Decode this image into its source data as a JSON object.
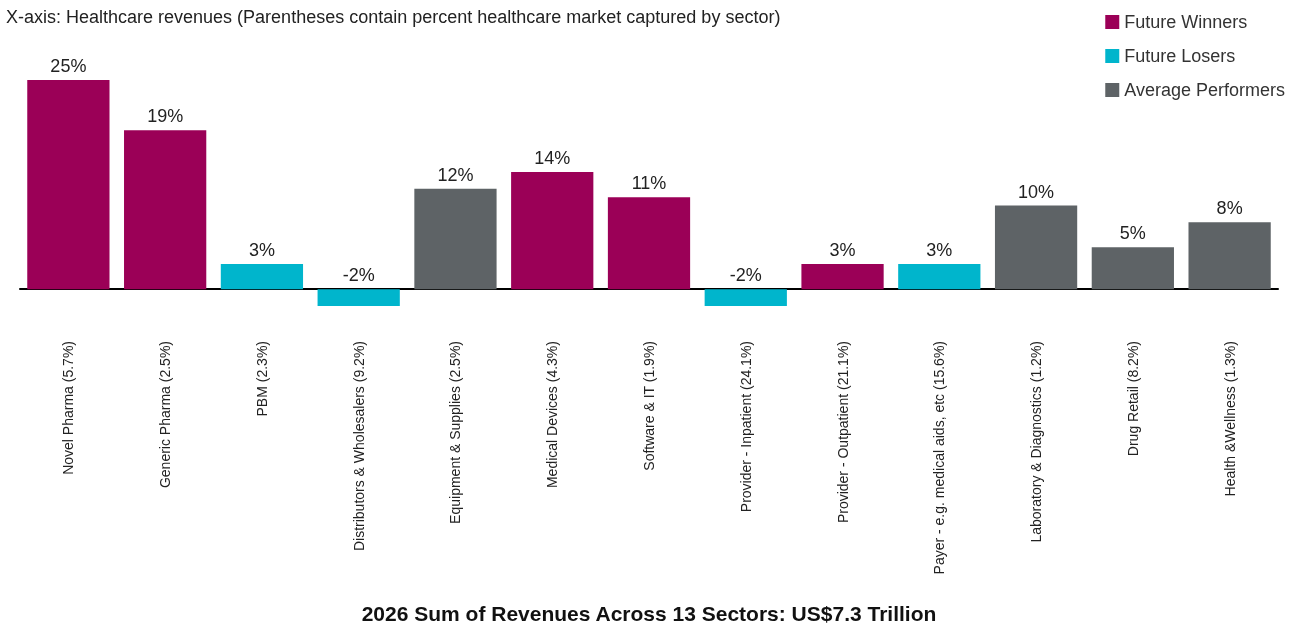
{
  "chart_data": {
    "type": "bar",
    "title": "2026 Sum of Revenues Across 13 Sectors: US$7.3 Trillion",
    "annotations": [
      "X-axis: Healthcare revenues (Parentheses contain percent healthcare market captured by sector)"
    ],
    "categories": [
      "Novel Pharma (5.7%)",
      "Generic Pharma (2.5%)",
      "PBM (2.3%)",
      "Distributors & Wholesalers (9.2%)",
      "Equipment & Supplies (2.5%)",
      "Medical Devices (4.3%)",
      "Software & IT (1.9%)",
      "Provider - Inpatient (24.1%)",
      "Provider - Outpatient (21.1%)",
      "Payer - e.g. medical aids, etc (15.6%)",
      "Laboratory & Diagnostics (1.2%)",
      "Drug Retail (8.2%)",
      "Health &Wellness (1.3%)"
    ],
    "stacked": true,
    "legend": "top right",
    "series": [
      {
        "name": "Future Winners",
        "color": "#9b0057",
        "values": [
          25,
          19,
          null,
          null,
          null,
          14,
          11,
          null,
          3,
          null,
          null,
          null,
          null
        ],
        "value_labels": [
          "25%",
          "19%",
          null,
          null,
          null,
          "14%",
          "11%",
          null,
          "3%",
          null,
          null,
          null,
          null
        ]
      },
      {
        "name": "Future Losers",
        "color": "#00b5cc",
        "values": [
          null,
          null,
          3,
          -2,
          null,
          null,
          null,
          -2,
          null,
          3,
          null,
          null,
          null
        ],
        "value_labels": [
          null,
          null,
          "3%",
          "-2%",
          null,
          null,
          null,
          "-2%",
          null,
          "3%",
          null,
          null,
          null
        ]
      },
      {
        "name": "Average Performers",
        "color": "#5e6366",
        "values": [
          null,
          null,
          null,
          null,
          12,
          null,
          null,
          null,
          null,
          null,
          10,
          5,
          8
        ],
        "value_labels": [
          null,
          null,
          null,
          null,
          "12%",
          null,
          null,
          null,
          null,
          null,
          "10%",
          "5%",
          "8%"
        ]
      }
    ]
  }
}
